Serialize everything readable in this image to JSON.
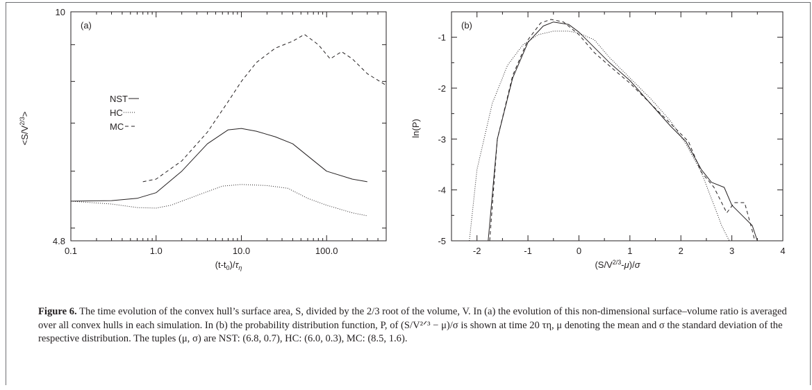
{
  "figure": {
    "label": "Figure 6.",
    "caption": "The time evolution of the convex hull’s surface area, S, divided by the 2/3 root of the volume, V. In (a) the evolution of this non-dimensional surface–volume ratio is averaged over all convex hulls in each simulation. In (b) the probability distribution function, P, of (S/V²ᐟ³ − μ)/σ is shown at time 20 τη, μ denoting the mean and σ the standard deviation of the respective distribution. The tuples (μ, σ) are NST: (6.8, 0.7), HC: (6.0, 0.3), MC: (8.5, 1.6)."
  },
  "chart_data": [
    {
      "panel": "(a)",
      "type": "line",
      "xscale": "log",
      "yscale": "log",
      "xlim": [
        0.1,
        500
      ],
      "ylim": [
        4.8,
        10
      ],
      "xlabel": "(t-t0)/τη",
      "ylabel": "<S/V2/3>",
      "xticks": [
        "0.1",
        "1.0",
        "10.0",
        "100.0"
      ],
      "yticks": [
        "4.8",
        "10"
      ],
      "legend_position": "left",
      "series": [
        {
          "name": "NST",
          "style": "solid",
          "x": [
            0.1,
            0.3,
            0.6,
            1.0,
            2.0,
            4.0,
            7.0,
            10.0,
            15.0,
            25.0,
            40.0,
            60.0,
            100.0,
            200.0,
            300.0
          ],
          "y": [
            5.45,
            5.46,
            5.5,
            5.6,
            6.0,
            6.55,
            6.85,
            6.88,
            6.82,
            6.7,
            6.55,
            6.3,
            6.0,
            5.85,
            5.8
          ]
        },
        {
          "name": "HC",
          "style": "dotted",
          "x": [
            0.1,
            0.3,
            0.6,
            1.0,
            1.5,
            3.0,
            6.0,
            10.0,
            20.0,
            35.0,
            60.0,
            100.0,
            200.0,
            300.0
          ],
          "y": [
            5.45,
            5.4,
            5.34,
            5.33,
            5.38,
            5.55,
            5.72,
            5.75,
            5.73,
            5.68,
            5.5,
            5.38,
            5.25,
            5.2
          ]
        },
        {
          "name": "MC",
          "style": "dashed",
          "x": [
            0.7,
            1.0,
            2.0,
            4.0,
            7.0,
            10.0,
            15.0,
            25.0,
            40.0,
            55.0,
            80.0,
            110.0,
            150.0,
            200.0,
            300.0,
            500.0
          ],
          "y": [
            5.8,
            5.85,
            6.2,
            6.8,
            7.5,
            8.0,
            8.5,
            8.9,
            9.1,
            9.3,
            9.0,
            8.6,
            8.8,
            8.6,
            8.2,
            7.9
          ]
        }
      ]
    },
    {
      "panel": "(b)",
      "type": "line",
      "xlim": [
        -2.5,
        4
      ],
      "ylim": [
        -5,
        -0.5
      ],
      "xlabel": "(S/V2/3-μ)/σ",
      "ylabel": "ln(P)",
      "xticks": [
        "-2",
        "-1",
        "0",
        "1",
        "2",
        "3",
        "4"
      ],
      "yticks": [
        "-1",
        "-2",
        "-3",
        "-4",
        "-5"
      ],
      "series": [
        {
          "name": "NST",
          "style": "solid",
          "x": [
            -1.78,
            -1.6,
            -1.3,
            -1.0,
            -0.7,
            -0.5,
            -0.2,
            0.0,
            0.3,
            0.6,
            1.0,
            1.4,
            1.8,
            2.1,
            2.4,
            2.6,
            2.85,
            3.0,
            3.2,
            3.4,
            3.5
          ],
          "y": [
            -5.0,
            -3.0,
            -1.8,
            -1.1,
            -0.78,
            -0.7,
            -0.75,
            -0.9,
            -1.2,
            -1.5,
            -1.85,
            -2.3,
            -2.75,
            -3.05,
            -3.6,
            -3.85,
            -3.95,
            -4.3,
            -4.5,
            -4.7,
            -5.0
          ]
        },
        {
          "name": "HC",
          "style": "dotted",
          "x": [
            -2.15,
            -2.0,
            -1.7,
            -1.4,
            -1.1,
            -0.8,
            -0.5,
            -0.2,
            0.0,
            0.3,
            0.6,
            1.0,
            1.4,
            1.8,
            2.1,
            2.4,
            2.65,
            2.8,
            2.95
          ],
          "y": [
            -5.0,
            -3.6,
            -2.3,
            -1.55,
            -1.15,
            -0.95,
            -0.88,
            -0.88,
            -0.92,
            -1.05,
            -1.4,
            -1.8,
            -2.2,
            -2.65,
            -3.1,
            -3.65,
            -4.3,
            -4.7,
            -5.0
          ]
        },
        {
          "name": "MC",
          "style": "dashed",
          "x": [
            -1.75,
            -1.6,
            -1.3,
            -1.0,
            -0.75,
            -0.55,
            -0.3,
            0.0,
            0.3,
            0.7,
            1.0,
            1.4,
            1.8,
            2.15,
            2.4,
            2.65,
            2.9,
            3.05,
            3.25,
            3.4,
            3.45
          ],
          "y": [
            -5.0,
            -3.0,
            -1.75,
            -1.05,
            -0.72,
            -0.65,
            -0.7,
            -0.95,
            -1.3,
            -1.65,
            -1.9,
            -2.3,
            -2.7,
            -3.05,
            -3.65,
            -3.95,
            -4.45,
            -4.25,
            -4.25,
            -4.8,
            -5.0
          ]
        }
      ]
    }
  ]
}
